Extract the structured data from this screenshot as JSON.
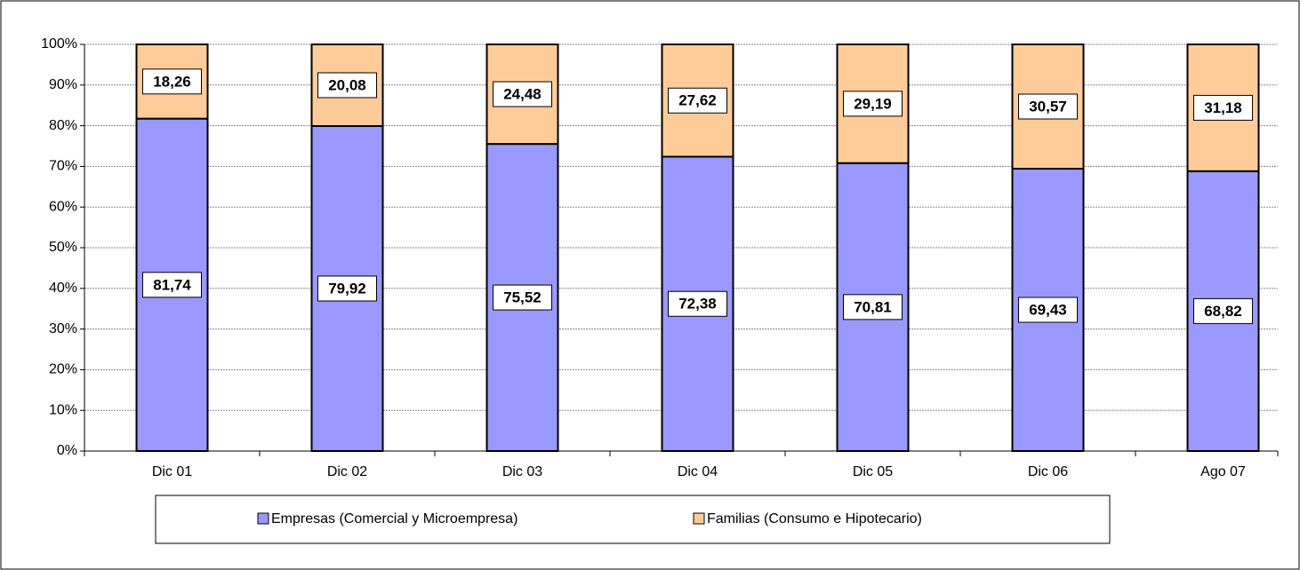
{
  "chart_data": {
    "type": "stacked_bar",
    "categories": [
      "Dic 01",
      "Dic 02",
      "Dic 03",
      "Dic 04",
      "Dic 05",
      "Dic 06",
      "Ago 07"
    ],
    "series": [
      {
        "name": "Empresas (Comercial y Microempresa)",
        "color": "#9999ff",
        "values": [
          81.74,
          79.92,
          75.52,
          72.38,
          70.81,
          69.43,
          68.82
        ],
        "value_labels": [
          "81,74",
          "79,92",
          "75,52",
          "72,38",
          "70,81",
          "69,43",
          "68,82"
        ]
      },
      {
        "name": "Familias (Consumo e Hipotecario)",
        "color": "#ffcc99",
        "values": [
          18.26,
          20.08,
          24.48,
          27.62,
          29.19,
          30.57,
          31.18
        ],
        "value_labels": [
          "18,26",
          "20,08",
          "24,48",
          "27,62",
          "29,19",
          "30,57",
          "31,18"
        ]
      }
    ],
    "ylim": [
      0,
      100
    ],
    "yticks": [
      {
        "value": 0,
        "label": "0%"
      },
      {
        "value": 10,
        "label": "10%"
      },
      {
        "value": 20,
        "label": "20%"
      },
      {
        "value": 30,
        "label": "30%"
      },
      {
        "value": 40,
        "label": "40%"
      },
      {
        "value": 50,
        "label": "50%"
      },
      {
        "value": 60,
        "label": "60%"
      },
      {
        "value": 70,
        "label": "70%"
      },
      {
        "value": 80,
        "label": "80%"
      },
      {
        "value": 90,
        "label": "90%"
      },
      {
        "value": 100,
        "label": "100%"
      }
    ],
    "grid": true,
    "legend": "bottom"
  }
}
